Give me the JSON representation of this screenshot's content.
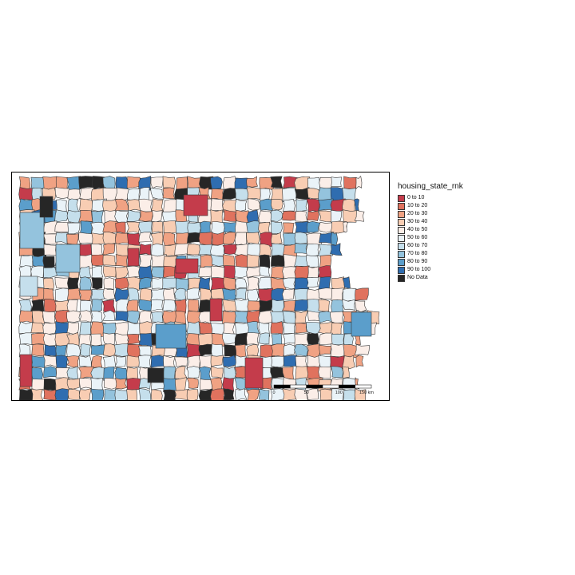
{
  "legend": {
    "title": "housing_state_rnk",
    "items": [
      {
        "label": "0 to 10",
        "color": "#c43c4b"
      },
      {
        "label": "10 to 20",
        "color": "#e0725e"
      },
      {
        "label": "20 to 30",
        "color": "#f0a283"
      },
      {
        "label": "30 to 40",
        "color": "#f8cdb3"
      },
      {
        "label": "40 to 50",
        "color": "#fbeee8"
      },
      {
        "label": "50 to 60",
        "color": "#eaf3f8"
      },
      {
        "label": "60 to 70",
        "color": "#c5dfec"
      },
      {
        "label": "70 to 80",
        "color": "#94c3dd"
      },
      {
        "label": "80 to 90",
        "color": "#5b9ecb"
      },
      {
        "label": "90 to 100",
        "color": "#2f6db0"
      },
      {
        "label": "No Data",
        "color": "#262626"
      }
    ]
  },
  "scale_bar": {
    "ticks": [
      "0",
      "50",
      "100",
      "150 km"
    ]
  }
}
